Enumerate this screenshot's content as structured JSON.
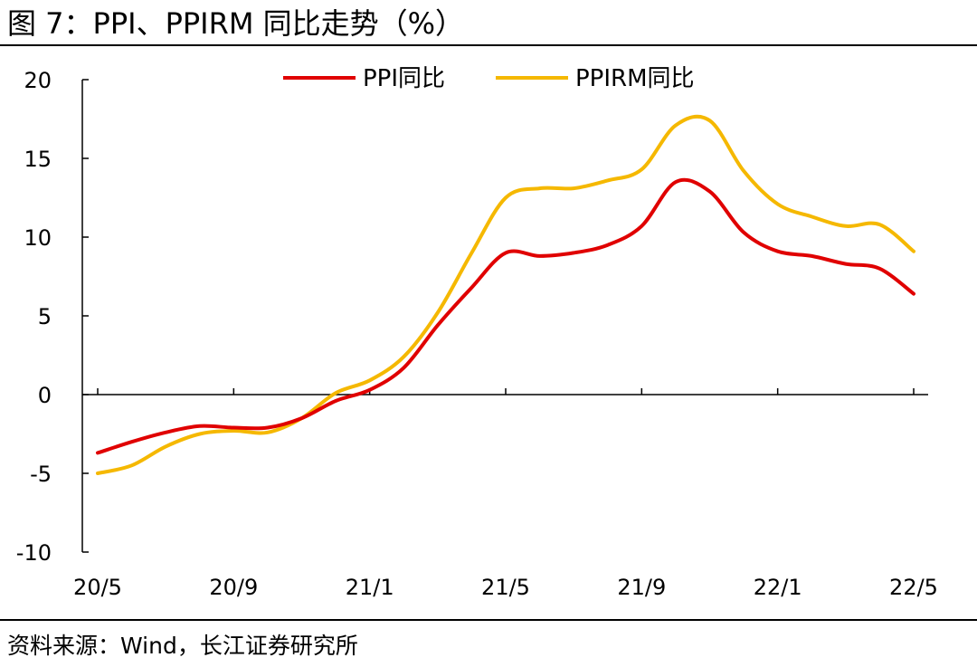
{
  "header": {
    "title": "图 7：PPI、PPIRM 同比走势（%）"
  },
  "footer": {
    "source": "资料来源：Wind，长江证券研究所"
  },
  "chart_data": {
    "type": "line",
    "x": [
      "20/5",
      "20/6",
      "20/7",
      "20/8",
      "20/9",
      "20/10",
      "20/11",
      "20/12",
      "21/1",
      "21/2",
      "21/3",
      "21/4",
      "21/5",
      "21/6",
      "21/7",
      "21/8",
      "21/9",
      "21/10",
      "21/11",
      "21/12",
      "22/1",
      "22/2",
      "22/3",
      "22/4",
      "22/5"
    ],
    "xticks": [
      "20/5",
      "20/9",
      "21/1",
      "21/5",
      "21/9",
      "22/1",
      "22/5"
    ],
    "ylim": [
      -10,
      20
    ],
    "yticks": [
      -10,
      -5,
      0,
      5,
      10,
      15,
      20
    ],
    "series": [
      {
        "name": "PPI同比",
        "color": "#e00000",
        "values": [
          -3.7,
          -3.0,
          -2.4,
          -2.0,
          -2.1,
          -2.1,
          -1.5,
          -0.4,
          0.3,
          1.7,
          4.4,
          6.8,
          9.0,
          8.8,
          9.0,
          9.5,
          10.7,
          13.5,
          12.9,
          10.3,
          9.1,
          8.8,
          8.3,
          8.0,
          6.4
        ]
      },
      {
        "name": "PPIRM同比",
        "color": "#f5b800",
        "values": [
          -5.0,
          -4.5,
          -3.3,
          -2.5,
          -2.3,
          -2.4,
          -1.5,
          0.1,
          0.9,
          2.4,
          5.2,
          9.0,
          12.5,
          13.1,
          13.1,
          13.6,
          14.3,
          17.1,
          17.4,
          14.2,
          12.1,
          11.3,
          10.7,
          10.8,
          9.1
        ]
      }
    ],
    "legend": "top"
  }
}
